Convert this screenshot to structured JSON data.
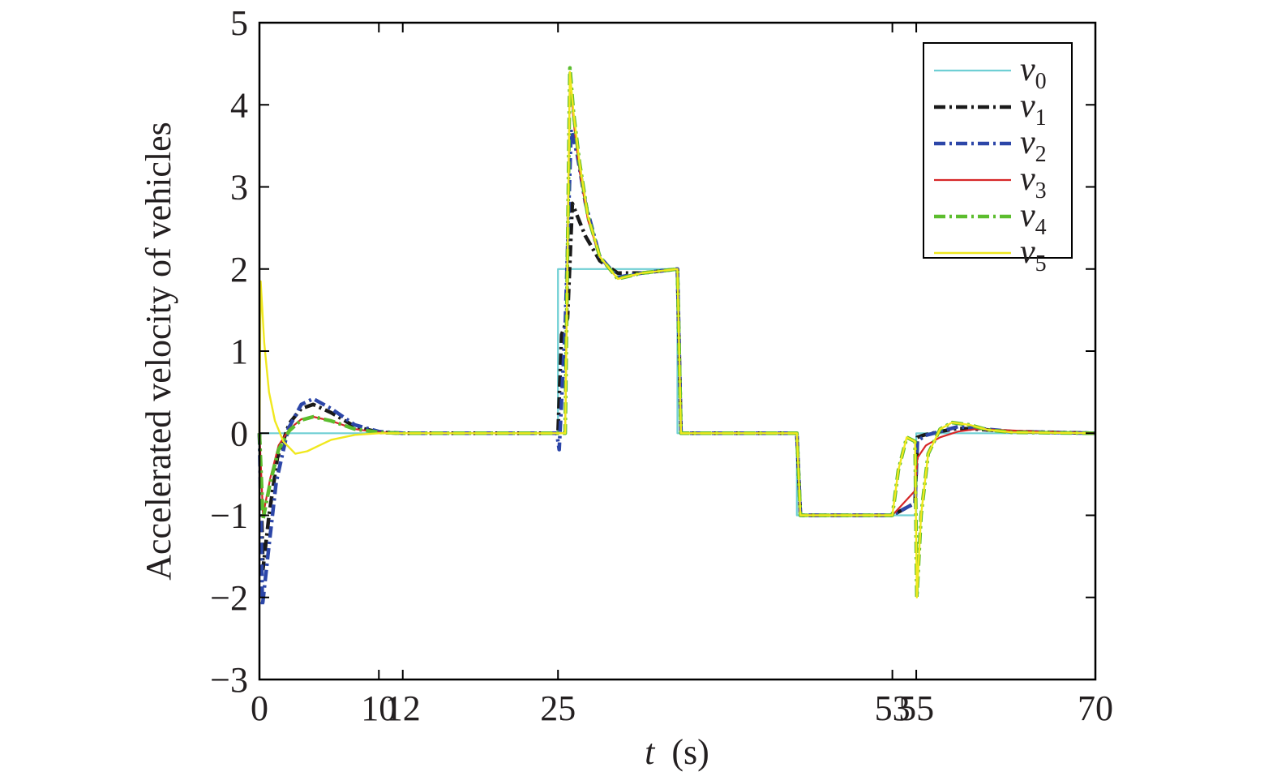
{
  "chart_data": {
    "type": "line",
    "title": "",
    "xlabel_var": "t",
    "xlabel_unit": "(s)",
    "ylabel": "Accelerated velocity of vehicles",
    "xlim": [
      0,
      70
    ],
    "ylim": [
      -3,
      5
    ],
    "xticks": [
      0,
      10,
      12,
      25,
      53,
      55,
      70
    ],
    "xtick_labels": [
      "0",
      "10",
      "12",
      "25",
      "53",
      "55",
      "70"
    ],
    "yticks": [
      -3,
      -2,
      -1,
      0,
      1,
      2,
      3,
      4,
      5
    ],
    "ytick_labels": [
      "−3",
      "−2",
      "−1",
      "0",
      "1",
      "2",
      "3",
      "4",
      "5"
    ],
    "grid": false,
    "legend_position": "top-right",
    "series": [
      {
        "name": "v",
        "subscript": "0",
        "color": "#6fcfd4",
        "style": "solid",
        "x": [
          0,
          25,
          25,
          35,
          35,
          45,
          45,
          53,
          53,
          55,
          55,
          70
        ],
        "y": [
          0,
          0,
          2,
          2,
          0,
          0,
          -1,
          -1,
          -1,
          -1,
          0,
          0
        ]
      },
      {
        "name": "v",
        "subscript": "1",
        "color": "#1a1a1a",
        "style": "dashdot",
        "x": [
          0,
          0.3,
          0.8,
          1.5,
          2.5,
          3.5,
          4.5,
          6,
          8,
          10,
          12,
          25,
          25.3,
          25.8,
          26.2,
          26.6,
          27.3,
          28.5,
          30,
          32,
          35,
          35.3,
          45,
          45.3,
          53,
          54.9,
          55.1,
          55.7,
          57,
          58.5,
          60,
          63,
          70
        ],
        "y": [
          0,
          -1.65,
          -1.0,
          -0.3,
          0.12,
          0.3,
          0.35,
          0.25,
          0.08,
          0.01,
          0,
          0,
          1.2,
          1.4,
          2.8,
          2.65,
          2.4,
          2.1,
          1.95,
          1.95,
          2,
          0,
          0,
          -1,
          -1,
          -0.85,
          -0.05,
          -0.02,
          0.02,
          0.06,
          0.05,
          0.02,
          0
        ]
      },
      {
        "name": "v",
        "subscript": "2",
        "color": "#2c46a8",
        "style": "dashdot",
        "x": [
          0,
          0.25,
          0.7,
          1.4,
          2.4,
          3.5,
          4.5,
          6,
          8,
          10,
          12,
          24.9,
          25.1,
          25.6,
          26.1,
          26.6,
          27.3,
          28.5,
          30,
          32,
          35,
          35.3,
          45,
          45.3,
          53,
          54.9,
          55.1,
          55.7,
          57,
          58.5,
          60,
          63,
          70
        ],
        "y": [
          0,
          -2.1,
          -1.5,
          -0.6,
          0.05,
          0.35,
          0.42,
          0.3,
          0.1,
          0.02,
          0,
          0,
          -0.2,
          1.3,
          3.7,
          3.4,
          2.8,
          2.15,
          1.9,
          1.95,
          2,
          0,
          0,
          -1,
          -1,
          -0.85,
          -0.1,
          -0.03,
          0.02,
          0.08,
          0.06,
          0.02,
          0
        ]
      },
      {
        "name": "v",
        "subscript": "3",
        "color": "#d62728",
        "style": "solid",
        "x": [
          0,
          0.3,
          0.9,
          1.6,
          2.5,
          3.5,
          4.5,
          6,
          8,
          10,
          12,
          25.6,
          26.0,
          26.3,
          26.8,
          27.5,
          28.5,
          30,
          32,
          35,
          35.3,
          45,
          45.3,
          53,
          54.9,
          55.1,
          55.8,
          57,
          58.5,
          60,
          62,
          65,
          70
        ],
        "y": [
          0,
          -1.0,
          -0.55,
          -0.15,
          0.05,
          0.17,
          0.2,
          0.15,
          0.05,
          0.01,
          0,
          0,
          4.4,
          3.8,
          3.2,
          2.6,
          2.15,
          1.88,
          1.95,
          2,
          0,
          0,
          -1,
          -1,
          -0.7,
          -0.3,
          -0.15,
          -0.05,
          0.02,
          0.05,
          0.04,
          0.02,
          0
        ]
      },
      {
        "name": "v",
        "subscript": "4",
        "color": "#5cbd2e",
        "style": "dashdot",
        "x": [
          0,
          0.3,
          0.9,
          1.6,
          2.5,
          3.5,
          4.5,
          6,
          8,
          10,
          12,
          25.6,
          26.0,
          26.3,
          26.8,
          27.5,
          28.5,
          30,
          32,
          35,
          35.3,
          45,
          45.3,
          53,
          53.5,
          54.2,
          54.9,
          55.05,
          55.4,
          56,
          57,
          58,
          59.5,
          61,
          63,
          70
        ],
        "y": [
          0,
          -1.05,
          -0.6,
          -0.2,
          0.03,
          0.16,
          0.2,
          0.15,
          0.05,
          0.01,
          0,
          0,
          4.45,
          3.9,
          3.3,
          2.65,
          2.15,
          1.88,
          1.95,
          2,
          0,
          0,
          -1,
          -1,
          -0.45,
          -0.05,
          -0.1,
          -2.0,
          -1.0,
          -0.25,
          0.05,
          0.13,
          0.1,
          0.04,
          0.01,
          0
        ]
      },
      {
        "name": "v",
        "subscript": "5",
        "color": "#f0e81e",
        "style": "solid",
        "x": [
          0,
          0.1,
          0.4,
          0.8,
          1.3,
          2,
          3,
          4,
          5,
          6,
          8,
          10,
          12,
          25.6,
          26.0,
          26.3,
          26.8,
          27.5,
          28.5,
          30,
          32,
          35,
          35.3,
          45,
          45.3,
          53,
          53.5,
          54.2,
          54.9,
          55.05,
          55.4,
          56,
          57,
          58,
          59.5,
          61,
          63,
          70
        ],
        "y": [
          0,
          1.85,
          1.1,
          0.5,
          0.15,
          -0.1,
          -0.25,
          -0.22,
          -0.15,
          -0.08,
          -0.02,
          0,
          0,
          0,
          4.4,
          3.9,
          3.3,
          2.65,
          2.15,
          1.88,
          1.95,
          2,
          0,
          0,
          -1,
          -1,
          -0.45,
          -0.05,
          -0.1,
          -2.0,
          -1.0,
          -0.25,
          0.05,
          0.13,
          0.1,
          0.04,
          0.01,
          0
        ]
      }
    ]
  }
}
